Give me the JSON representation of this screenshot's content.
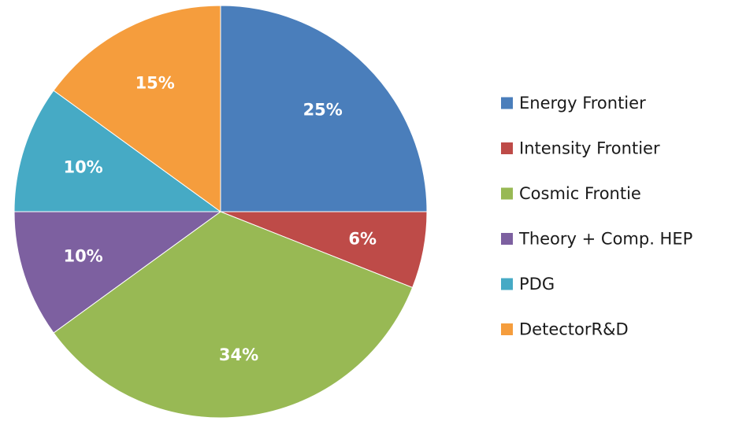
{
  "chart_data": {
    "type": "pie",
    "title": "",
    "start_angle_deg": 0,
    "direction": "clockwise",
    "legend_position": "right",
    "slices": [
      {
        "label": "Energy Frontier",
        "value": 25,
        "display": "25%",
        "color": "#4a7ebb"
      },
      {
        "label": "Intensity Frontier",
        "value": 6,
        "display": "6%",
        "color": "#be4b48"
      },
      {
        "label": "Cosmic Frontie",
        "value": 34,
        "display": "34%",
        "color": "#98b954"
      },
      {
        "label": "Theory + Comp. HEP",
        "value": 10,
        "display": "10%",
        "color": "#7d60a0"
      },
      {
        "label": "PDG",
        "value": 10,
        "display": "10%",
        "color": "#46aac5"
      },
      {
        "label": "DetectorR&D",
        "value": 15,
        "display": "15%",
        "color": "#f59d3d"
      }
    ]
  }
}
